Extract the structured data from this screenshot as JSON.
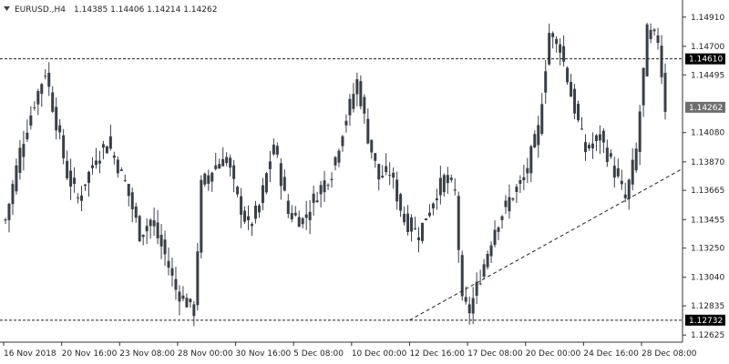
{
  "header": {
    "symbol": "EURUSD.,H4",
    "ohlc": "1.14385 1.14406 1.14214 1.14262"
  },
  "colors": {
    "background": "#ffffff",
    "candle": "#3a3f47",
    "axis": "#333333",
    "dashed": "#222222",
    "price_box_bg": "#000000",
    "price_box_current_bg": "#6e6e6e"
  },
  "chart_data": {
    "type": "candlestick",
    "title": "EURUSD.,H4",
    "xlabel": "",
    "ylabel": "",
    "ylim": [
      1.126,
      1.1502
    ],
    "y_ticks": [
      "1.14910",
      "1.14700",
      "1.14495",
      "1.14080",
      "1.13870",
      "1.13665",
      "1.13455",
      "1.13250",
      "1.13040",
      "1.12835",
      "1.12625"
    ],
    "x_ticks": [
      "16 Nov 2018",
      "20 Nov 16:00",
      "23 Nov 08:00",
      "28 Nov 00:00",
      "30 Nov 16:00",
      "5 Dec 08:00",
      "10 Dec 00:00",
      "12 Dec 16:00",
      "17 Dec 08:00",
      "20 Dec 00:00",
      "24 Dec 16:00",
      "28 Dec 08:00"
    ],
    "anchors": [
      [
        0,
        1.1345
      ],
      [
        4,
        1.1395
      ],
      [
        8,
        1.143
      ],
      [
        11,
        1.1452
      ],
      [
        14,
        1.1415
      ],
      [
        17,
        1.1378
      ],
      [
        20,
        1.136
      ],
      [
        24,
        1.1385
      ],
      [
        28,
        1.1402
      ],
      [
        33,
        1.1372
      ],
      [
        37,
        1.1335
      ],
      [
        40,
        1.1345
      ],
      [
        44,
        1.132
      ],
      [
        47,
        1.1295
      ],
      [
        52,
        1.128
      ],
      [
        54,
        1.137
      ],
      [
        58,
        1.1385
      ],
      [
        61,
        1.139
      ],
      [
        64,
        1.136
      ],
      [
        67,
        1.134
      ],
      [
        70,
        1.1355
      ],
      [
        74,
        1.14
      ],
      [
        78,
        1.135
      ],
      [
        82,
        1.1345
      ],
      [
        86,
        1.1365
      ],
      [
        90,
        1.138
      ],
      [
        93,
        1.141
      ],
      [
        97,
        1.1445
      ],
      [
        100,
        1.1405
      ],
      [
        103,
        1.1375
      ],
      [
        106,
        1.138
      ],
      [
        110,
        1.1345
      ],
      [
        114,
        1.1335
      ],
      [
        118,
        1.136
      ],
      [
        121,
        1.1375
      ],
      [
        124,
        1.1365
      ],
      [
        126,
        1.1285
      ],
      [
        128,
        1.128
      ],
      [
        131,
        1.1305
      ],
      [
        135,
        1.134
      ],
      [
        139,
        1.136
      ],
      [
        143,
        1.1375
      ],
      [
        147,
        1.141
      ],
      [
        150,
        1.148
      ],
      [
        153,
        1.147
      ],
      [
        156,
        1.1435
      ],
      [
        160,
        1.1395
      ],
      [
        164,
        1.1405
      ],
      [
        168,
        1.138
      ],
      [
        171,
        1.136
      ],
      [
        174,
        1.1395
      ],
      [
        177,
        1.148
      ],
      [
        180,
        1.1475
      ],
      [
        182,
        1.1426
      ]
    ],
    "series": [
      {
        "name": "",
        "style": "horizontal-dashed",
        "points": [
          [
            "16 Nov 2018",
            1.1461
          ],
          [
            "28 Dec 08:00",
            1.1461
          ]
        ]
      },
      {
        "name": "",
        "style": "horizontal-dashed",
        "points": [
          [
            "16 Nov 2018",
            1.12732
          ],
          [
            "28 Dec 08:00",
            1.12732
          ]
        ]
      },
      {
        "name": "",
        "style": "trendline-dashed",
        "points": [
          [
            "12 Dec 16:00",
            1.12732
          ],
          [
            "24 Dec 16:00",
            1.13455
          ]
        ]
      }
    ],
    "levels": {
      "resistance": 1.1461,
      "support": 1.12732,
      "current": 1.14262,
      "resistance_label": "1.14610",
      "support_label": "1.12732",
      "current_label": "1.14262"
    },
    "grid": false,
    "legend": "none"
  }
}
